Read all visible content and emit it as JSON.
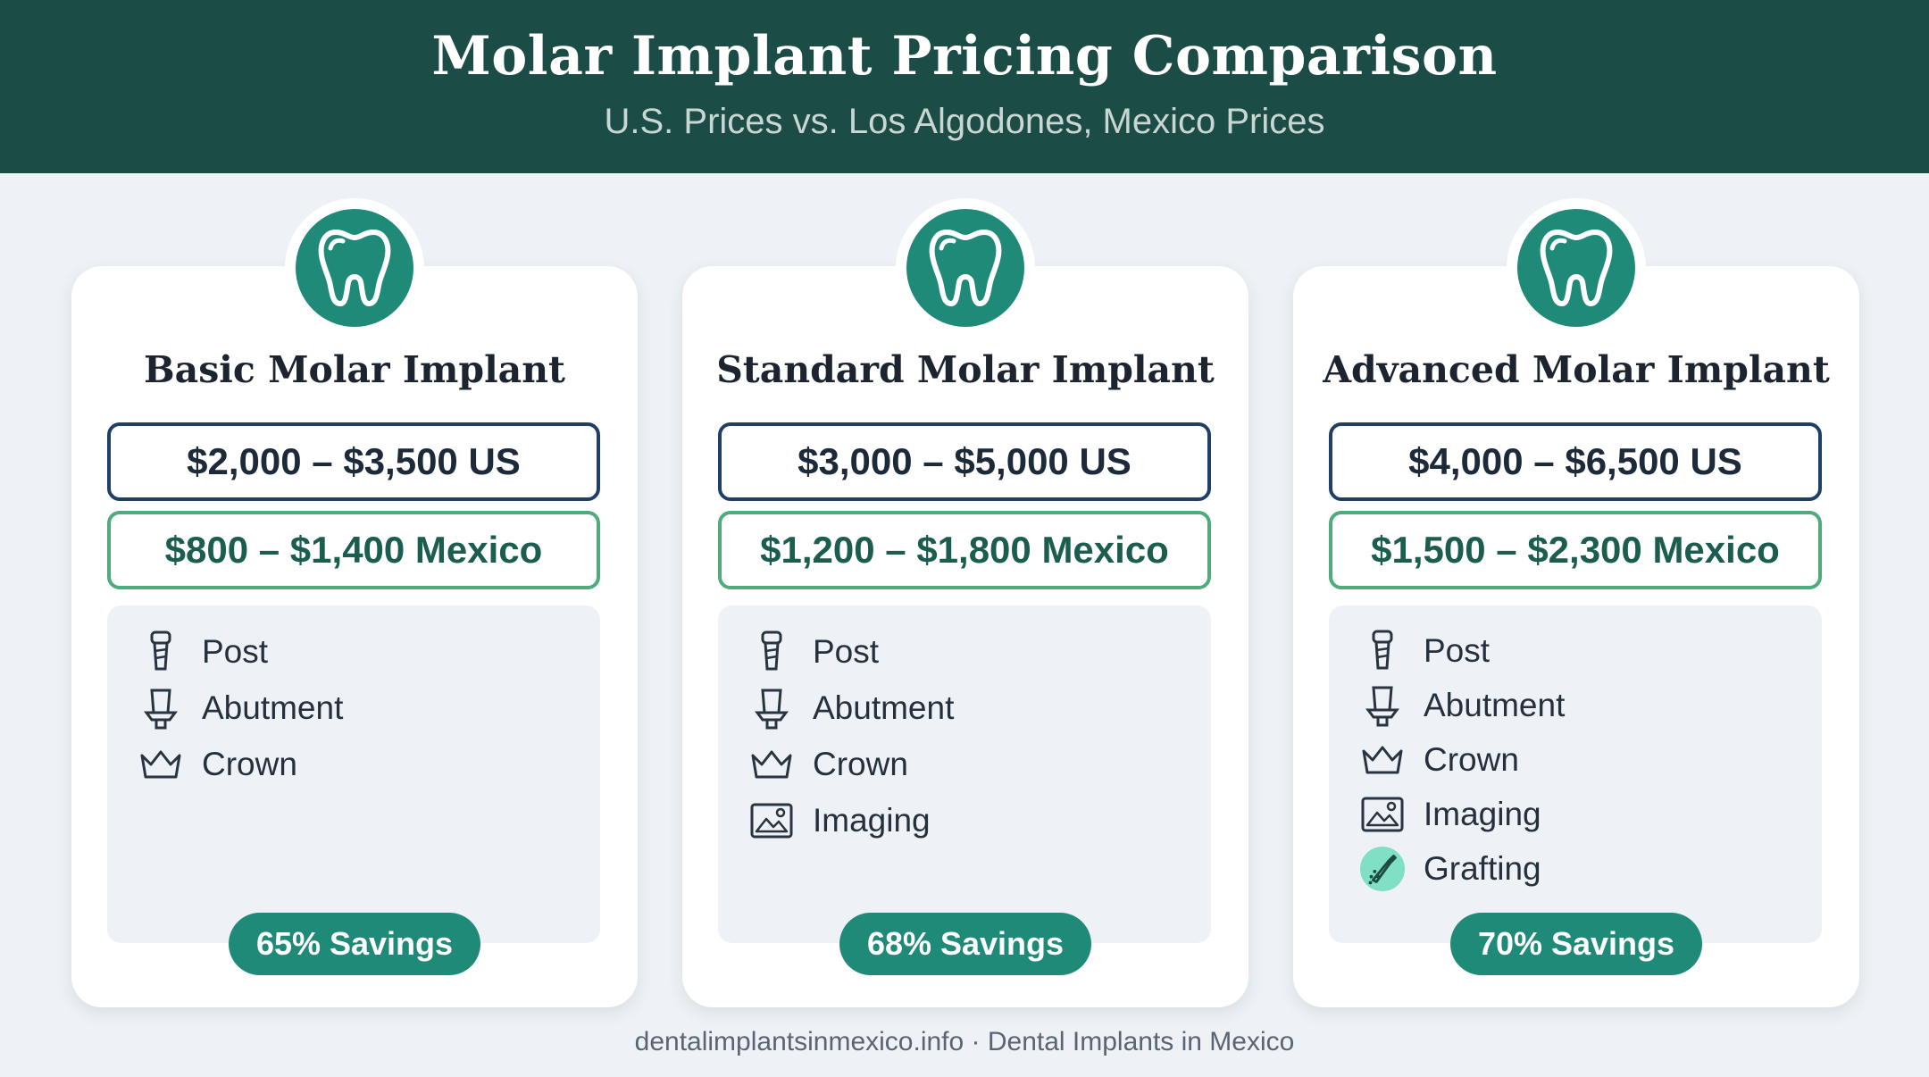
{
  "header": {
    "title": "Molar Implant Pricing Comparison",
    "subtitle": "U.S. Prices vs. Los Algodones, Mexico Prices"
  },
  "colors": {
    "header_bg": "#1b4d46",
    "accent_teal": "#1f8a77",
    "us_border": "#1f3f66",
    "mexico_border": "#4faa7c"
  },
  "cards": [
    {
      "icon": "tooth-icon",
      "title": "Basic Molar Implant",
      "us_price": "$2,000 – $3,500 US",
      "mexico_price": "$800 – $1,400 Mexico",
      "features": [
        {
          "icon": "post-icon",
          "label": "Post"
        },
        {
          "icon": "abutment-icon",
          "label": "Abutment"
        },
        {
          "icon": "crown-icon",
          "label": "Crown"
        }
      ],
      "savings": "65% Savings"
    },
    {
      "icon": "tooth-icon",
      "title": "Standard Molar Implant",
      "us_price": "$3,000 – $5,000 US",
      "mexico_price": "$1,200 – $1,800 Mexico",
      "features": [
        {
          "icon": "post-icon",
          "label": "Post"
        },
        {
          "icon": "abutment-icon",
          "label": "Abutment"
        },
        {
          "icon": "crown-icon",
          "label": "Crown"
        },
        {
          "icon": "image-icon",
          "label": "Imaging"
        }
      ],
      "savings": "68% Savings"
    },
    {
      "icon": "tooth-icon",
      "title": "Advanced Molar Implant",
      "us_price": "$4,000 – $6,500 US",
      "mexico_price": "$1,500 – $2,300 Mexico",
      "features": [
        {
          "icon": "post-icon",
          "label": "Post"
        },
        {
          "icon": "abutment-icon",
          "label": "Abutment"
        },
        {
          "icon": "crown-icon",
          "label": "Crown"
        },
        {
          "icon": "image-icon",
          "label": "Imaging"
        },
        {
          "icon": "grafting-icon",
          "label": "Grafting"
        }
      ],
      "savings": "70% Savings"
    }
  ],
  "footer": "dentalimplantsinmexico.info · Dental Implants in Mexico"
}
